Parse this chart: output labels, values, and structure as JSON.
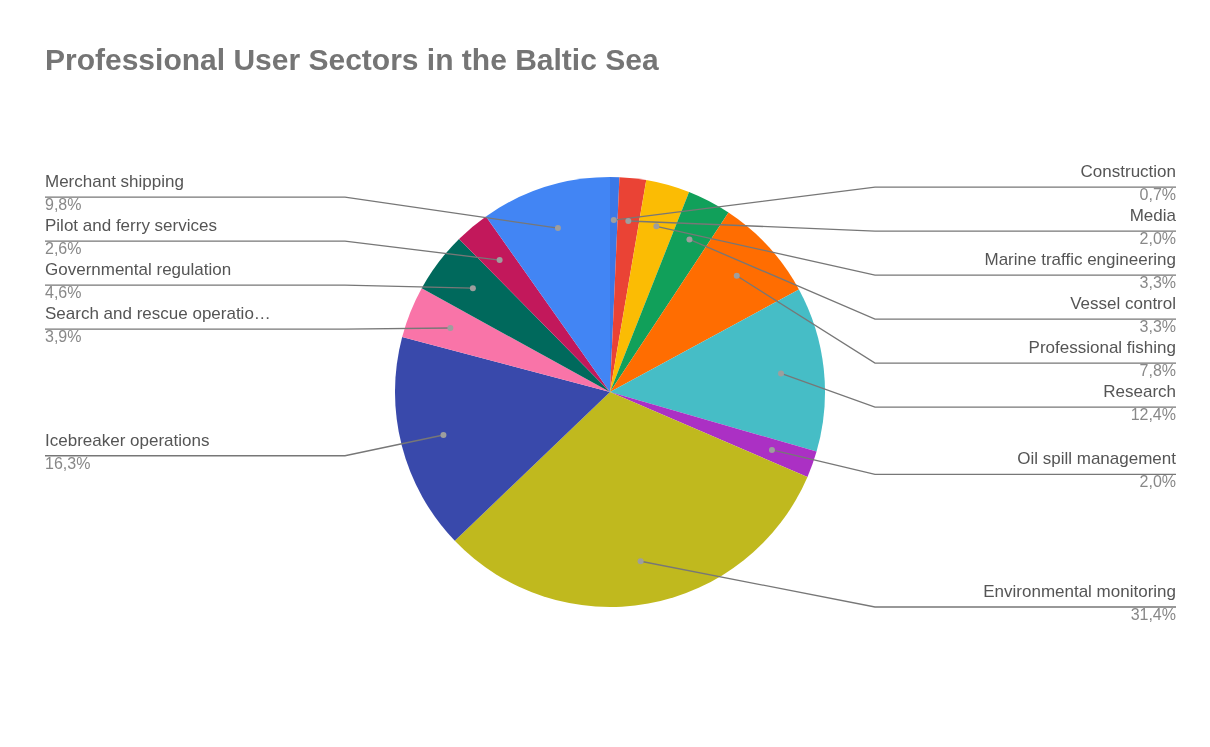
{
  "chart_data": {
    "type": "pie",
    "title": "Professional User Sectors in the Baltic Sea",
    "categories": [
      "Construction",
      "Media",
      "Marine traffic engineering",
      "Vessel control",
      "Professional fishing",
      "Research",
      "Oil spill management",
      "Environmental monitoring",
      "Icebreaker operations",
      "Search and rescue operatio…",
      "Governmental regulation",
      "Pilot and ferry services",
      "Merchant shipping"
    ],
    "values": [
      0.7,
      2.0,
      3.3,
      3.3,
      7.8,
      12.4,
      2.0,
      31.4,
      16.3,
      3.9,
      4.6,
      2.6,
      9.8
    ],
    "value_labels": [
      "0,7%",
      "2,0%",
      "3,3%",
      "3,3%",
      "7,8%",
      "12,4%",
      "2,0%",
      "31,4%",
      "16,3%",
      "3,9%",
      "4,6%",
      "2,6%",
      "9,8%"
    ],
    "colors": [
      "#3b78e7",
      "#ea4335",
      "#fbbc04",
      "#11a05a",
      "#ff6d01",
      "#46bdc6",
      "#ab30c4",
      "#c0b91e",
      "#3949ab",
      "#f974a8",
      "#00695c",
      "#c2185b",
      "#4285f4"
    ]
  }
}
